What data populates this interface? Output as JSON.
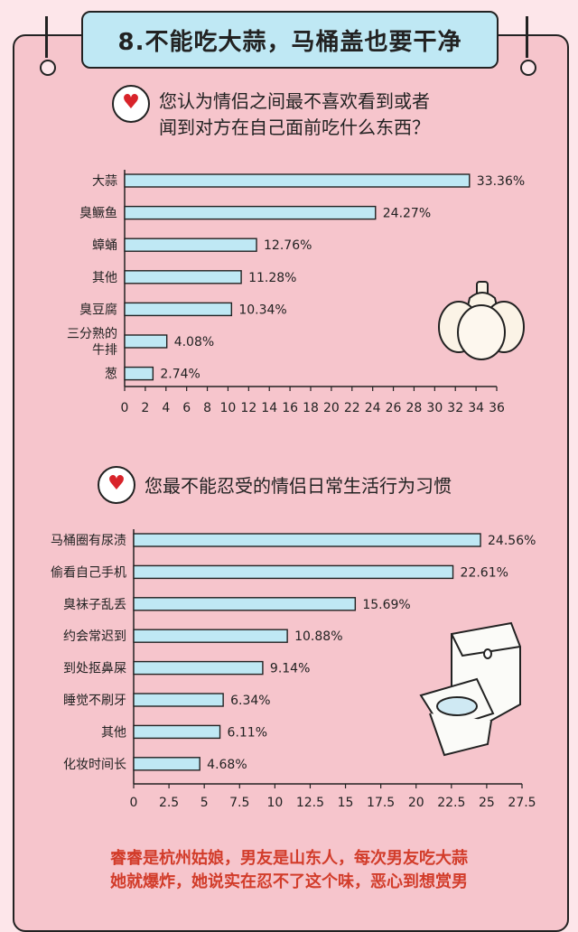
{
  "header": {
    "title": "8.不能吃大蒜，马桶盖也要干净"
  },
  "chart_data": [
    {
      "type": "bar",
      "orientation": "horizontal",
      "title": "您认为情侣之间最不喜欢看到或者闻到对方在自己面前吃什么东西？",
      "title_lines": [
        "您认为情侣之间最不喜欢看到或者",
        "闻到对方在自己面前吃什么东西？"
      ],
      "categories": [
        "大蒜",
        "臭鳜鱼",
        "蟑蛹",
        "其他",
        "臭豆腐",
        "三分熟的牛排",
        "葱"
      ],
      "category_lines": [
        [
          "大蒜"
        ],
        [
          "臭鳜鱼"
        ],
        [
          "蟑蛹"
        ],
        [
          "其他"
        ],
        [
          "臭豆腐"
        ],
        [
          "三分熟的",
          "牛排"
        ],
        [
          "葱"
        ]
      ],
      "values": [
        33.36,
        24.27,
        12.76,
        11.28,
        10.34,
        4.08,
        2.74
      ],
      "value_labels": [
        "33.36%",
        "24.27%",
        "12.76%",
        "11.28%",
        "10.34%",
        "4.08%",
        "2.74%"
      ],
      "xlim": [
        0,
        36
      ],
      "xticks": [
        "0",
        "2",
        "4",
        "6",
        "8",
        "10",
        "12",
        "14",
        "16",
        "18",
        "20",
        "22",
        "24",
        "26",
        "28",
        "30",
        "32",
        "34",
        "36"
      ],
      "bar_color": "#bfe8f4"
    },
    {
      "type": "bar",
      "orientation": "horizontal",
      "title": "您最不能忍受的情侣日常生活行为习惯",
      "title_lines": [
        "您最不能忍受的情侣日常生活行为习惯"
      ],
      "categories": [
        "马桶圈有尿渍",
        "偷看自己手机",
        "臭袜子乱丢",
        "约会常迟到",
        "到处抠鼻屎",
        "睡觉不刷牙",
        "其他",
        "化妆时间长"
      ],
      "category_lines": [
        [
          "马桶圈有尿渍"
        ],
        [
          "偷看自己手机"
        ],
        [
          "臭袜子乱丢"
        ],
        [
          "约会常迟到"
        ],
        [
          "到处抠鼻屎"
        ],
        [
          "睡觉不刷牙"
        ],
        [
          "其他"
        ],
        [
          "化妆时间长"
        ]
      ],
      "values": [
        24.56,
        22.61,
        15.69,
        10.88,
        9.14,
        6.34,
        6.11,
        4.68
      ],
      "value_labels": [
        "24.56%",
        "22.61%",
        "15.69%",
        "10.88%",
        "9.14%",
        "6.34%",
        "6.11%",
        "4.68%"
      ],
      "xlim": [
        0,
        27.5
      ],
      "xticks": [
        "0",
        "2.5",
        "5",
        "7.5",
        "10",
        "12.5",
        "15",
        "17.5",
        "20",
        "22.5",
        "25",
        "27.5"
      ],
      "bar_color": "#bfe8f4"
    }
  ],
  "footer": {
    "lines": [
      "睿睿是杭州姑娘，男友是山东人，每次男友吃大蒜",
      "她就爆炸，她说实在忍不了这个味，恶心到想赏男"
    ]
  },
  "icons": {
    "question_marker": "heart-bubble-icon",
    "garlic": "garlic-icon",
    "toilet": "toilet-icon"
  },
  "colors": {
    "board": "#f6c5cc",
    "background": "#fde6ea",
    "title_box": "#bfe8f4",
    "bar": "#bfe8f4",
    "footer_text": "#d23c2a"
  }
}
